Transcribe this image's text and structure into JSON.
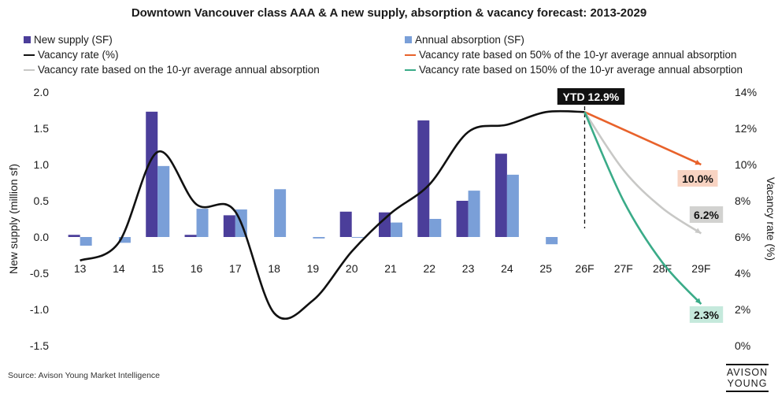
{
  "colors": {
    "new_supply": "#4b3e9a",
    "absorption": "#7a9fd8",
    "vacancy": "#111111",
    "f50": "#e8622b",
    "f100": "#c8c8c6",
    "f150": "#3aab88"
  },
  "chart_data": {
    "type": "bar",
    "title": "Downtown Vancouver class AAA & A new supply, absorption & vacancy forecast: 2013-2029",
    "categories": [
      "13",
      "14",
      "15",
      "16",
      "17",
      "18",
      "19",
      "20",
      "21",
      "22",
      "23",
      "24",
      "25",
      "26F",
      "27F",
      "28F",
      "29F"
    ],
    "ylabel": "New supply (million sf)",
    "ylim": [
      -1.5,
      2.0
    ],
    "yticks": [
      "2.0",
      "1.5",
      "1.0",
      "0.5",
      "0.0",
      "-0.5",
      "-1.0",
      "-1.5"
    ],
    "y2label": "Vacancy rate (%)",
    "y2lim": [
      0,
      14
    ],
    "y2ticks": [
      "14%",
      "12%",
      "10%",
      "8%",
      "6%",
      "4%",
      "2%",
      "0%"
    ],
    "series": [
      {
        "name": "New supply (SF)",
        "type": "bar",
        "values": [
          0.03,
          0,
          1.73,
          0.03,
          0.3,
          0,
          0,
          0.35,
          0.34,
          1.61,
          0.5,
          1.15,
          0,
          null,
          null,
          null,
          null
        ]
      },
      {
        "name": "Annual absorption (SF)",
        "type": "bar",
        "values": [
          -0.12,
          -0.08,
          0.98,
          0.39,
          0.38,
          0.66,
          -0.02,
          -0.01,
          0.2,
          0.25,
          0.64,
          0.86,
          -0.1,
          null,
          null,
          null,
          null
        ]
      },
      {
        "name": "Vacancy rate (%)",
        "type": "line",
        "values": [
          4.7,
          5.7,
          10.7,
          7.8,
          7.4,
          1.8,
          2.5,
          5.2,
          7.3,
          8.9,
          11.8,
          12.2,
          12.9,
          12.9,
          null,
          null,
          null
        ]
      },
      {
        "name": "Vacancy rate based on 50% of the 10-yr average annual absorption",
        "type": "line",
        "x": [
          "26F",
          "29F"
        ],
        "values": [
          12.9,
          10.0
        ]
      },
      {
        "name": "Vacancy rate based on the 10-yr average annual absorption",
        "type": "line",
        "x": [
          "26F",
          "27F",
          "28F",
          "29F"
        ],
        "values": [
          12.9,
          9.7,
          7.6,
          6.2
        ]
      },
      {
        "name": "Vacancy rate based on 150% of the 10-yr average annual absorption",
        "type": "line",
        "x": [
          "26F",
          "27F",
          "28F",
          "29F"
        ],
        "values": [
          12.9,
          8.0,
          4.6,
          2.3
        ]
      }
    ],
    "annotations": {
      "ytd": "YTD 12.9%",
      "f50_label": "10.0%",
      "f100_label": "6.2%",
      "f150_label": "2.3%"
    },
    "legend": "top"
  },
  "source": "Source: Avison Young Market Intelligence",
  "logo": {
    "line1": "AVISON",
    "line2": "YOUNG"
  }
}
